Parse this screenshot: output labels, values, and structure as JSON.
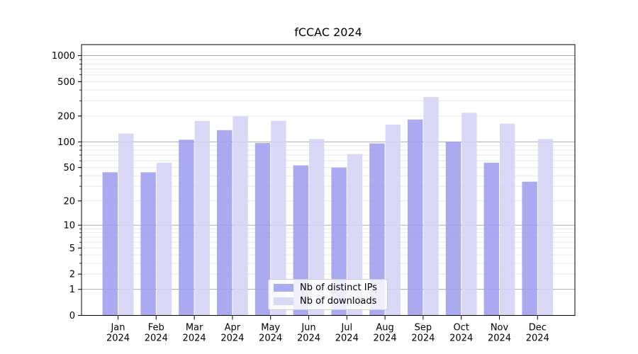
{
  "chart_data": {
    "type": "bar",
    "title": "fCCAC 2024",
    "months": [
      "Jan",
      "Feb",
      "Mar",
      "Apr",
      "May",
      "Jun",
      "Jul",
      "Aug",
      "Sep",
      "Oct",
      "Nov",
      "Dec"
    ],
    "year": "2024",
    "y_ticks": [
      0,
      1,
      2,
      5,
      10,
      20,
      50,
      100,
      200,
      500,
      1000
    ],
    "y_scale": "symlog-like (y proportional to log10(1+v))",
    "ylim": [
      0,
      1340
    ],
    "grid": true,
    "legend_position": "lower center",
    "series": [
      {
        "name": "Nb of distinct IPs",
        "color": "#9e9eee",
        "values": [
          44,
          44,
          106,
          137,
          97,
          53,
          50,
          96,
          182,
          100,
          57,
          34
        ]
      },
      {
        "name": "Nb of downloads",
        "color": "#d4d4f6",
        "values": [
          125,
          57,
          175,
          198,
          176,
          108,
          72,
          159,
          332,
          218,
          163,
          108
        ]
      }
    ],
    "bar_opacity": 0.88,
    "colors": {
      "background": "#ffffff",
      "axis": "#000000",
      "text": "#000000",
      "grid_major": "#ababab",
      "grid_minor": "#e9e9e9",
      "legend_border": "#cccccc"
    }
  }
}
